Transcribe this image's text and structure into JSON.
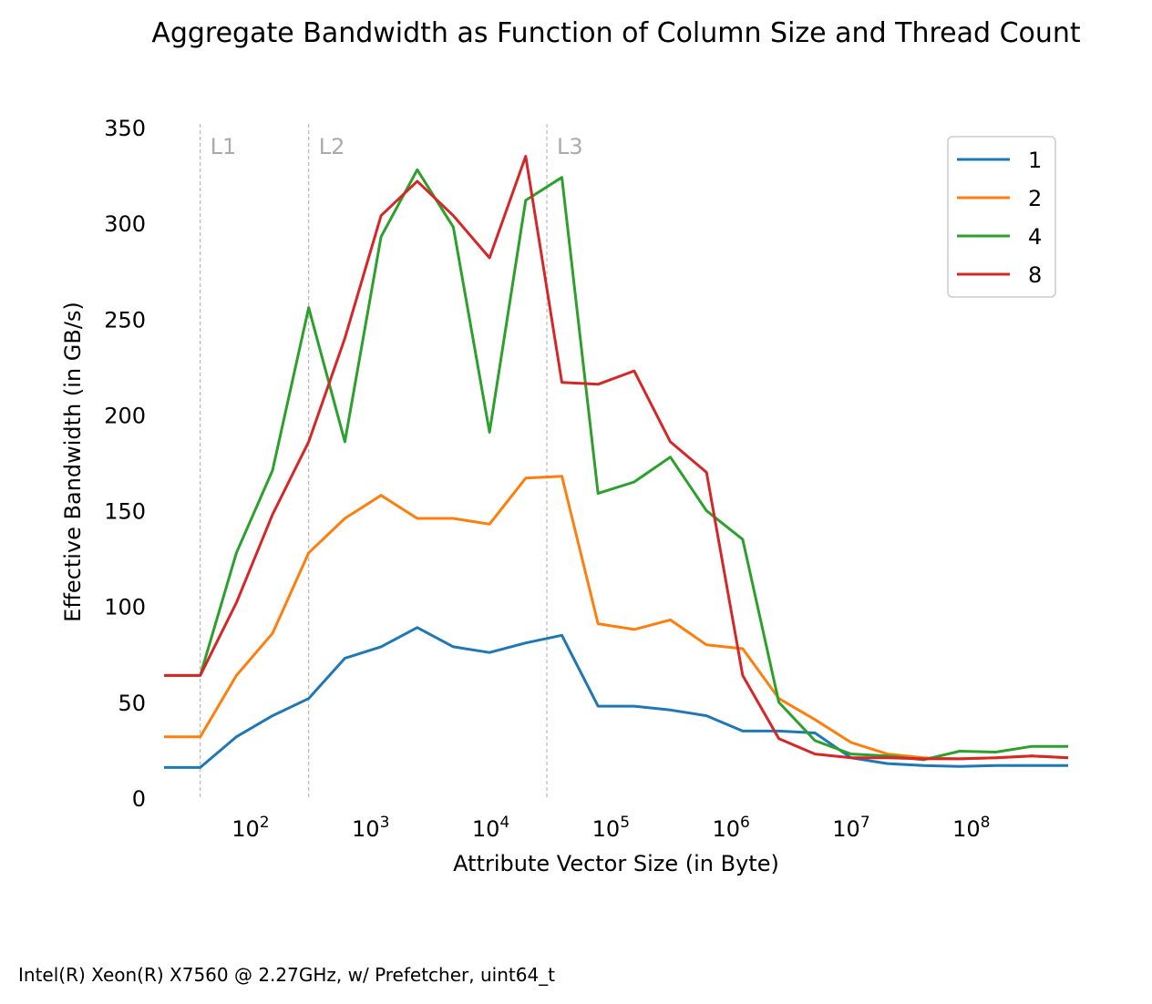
{
  "chart_data": {
    "type": "line",
    "title": "Aggregate Bandwidth as Function of Column Size and Thread Count",
    "xlabel": "Attribute Vector Size (in Byte)",
    "ylabel": "Effective Bandwidth (in GB/s)",
    "xscale": "log",
    "xlim": [
      16,
      536870912
    ],
    "ylim": [
      0,
      350
    ],
    "yticks": [
      0,
      50,
      100,
      150,
      200,
      250,
      300,
      350
    ],
    "xticks": [
      {
        "value": 100,
        "base": "10",
        "exp": "2"
      },
      {
        "value": 1000,
        "base": "10",
        "exp": "3"
      },
      {
        "value": 10000,
        "base": "10",
        "exp": "4"
      },
      {
        "value": 100000,
        "base": "10",
        "exp": "5"
      },
      {
        "value": 1000000,
        "base": "10",
        "exp": "6"
      },
      {
        "value": 10000000,
        "base": "10",
        "exp": "7"
      },
      {
        "value": 100000000,
        "base": "10",
        "exp": "8"
      }
    ],
    "cache_lines": [
      {
        "label": "L1",
        "x": 32
      },
      {
        "label": "L2",
        "x": 256
      },
      {
        "label": "L3",
        "x": 24576
      }
    ],
    "legend_position": "top-right",
    "grid": false,
    "x": [
      16,
      32,
      64,
      128,
      256,
      512,
      1024,
      2048,
      4096,
      8192,
      16384,
      32768,
      65536,
      131072,
      262144,
      524288,
      1048576,
      2097152,
      4194304,
      8388608,
      16777216,
      33554432,
      67108864,
      134217728,
      268435456,
      536870912
    ],
    "series": [
      {
        "name": "1",
        "color": "#1f77b4",
        "values": [
          16,
          16,
          32,
          43,
          52,
          73,
          79,
          89,
          79,
          76,
          81,
          85,
          48,
          48,
          46,
          43,
          35,
          35,
          34,
          21,
          18,
          17,
          16.5,
          17,
          17,
          17
        ]
      },
      {
        "name": "2",
        "color": "#ff7f0e",
        "values": [
          32,
          32,
          64,
          86,
          128,
          146,
          158,
          146,
          146,
          143,
          167,
          168,
          91,
          88,
          93,
          80,
          78,
          52,
          41,
          29,
          23,
          21,
          20.5,
          21,
          22,
          21
        ]
      },
      {
        "name": "4",
        "color": "#2ca02c",
        "values": [
          64,
          64,
          128,
          171,
          256,
          186,
          293,
          328,
          298,
          191,
          312,
          324,
          159,
          165,
          178,
          150,
          135,
          50,
          30,
          23,
          22,
          20,
          24.5,
          24,
          27,
          27
        ]
      },
      {
        "name": "8",
        "color": "#d62728",
        "values": [
          64,
          64,
          102,
          148,
          186,
          240,
          304,
          322,
          304,
          282,
          335,
          217,
          216,
          223,
          186,
          170,
          64,
          31,
          23,
          21,
          21,
          20.5,
          20.5,
          21,
          22,
          21
        ]
      }
    ]
  },
  "footnote": "Intel(R) Xeon(R) X7560 @ 2.27GHz, w/ Prefetcher, uint64_t"
}
